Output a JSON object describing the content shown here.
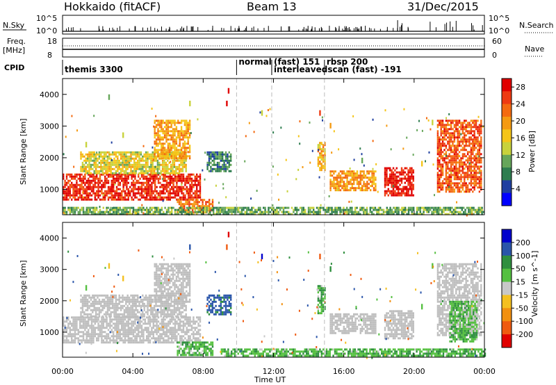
{
  "header": {
    "radar": "Hokkaido (fitACF)",
    "beam": "Beam 13",
    "date": "31/Dec/2015"
  },
  "noise_panel": {
    "left_label": "N.Sky",
    "right_label": "N.Search",
    "left_ticks": [
      "10^5",
      "10^0"
    ],
    "right_ticks": [
      "10^5",
      "10^0"
    ]
  },
  "freq_panel": {
    "left_label_top": "Freq.",
    "left_label_bottom": "[MHz]",
    "right_label": "Nave",
    "left_ticks": [
      "18",
      "8"
    ],
    "right_ticks": [
      "60",
      "0"
    ]
  },
  "cpid_panel": {
    "label": "CPID",
    "segments": [
      {
        "name": "themis 3300",
        "start_hour": 0.0,
        "end_hour": 9.9
      },
      {
        "name": "normal",
        "start_hour": 9.9,
        "end_hour": 11.9
      },
      {
        "name": "(fast) 151",
        "start_hour": 11.9,
        "end_hour": 14.9
      },
      {
        "name": "interleavedscan (fast) -191",
        "start_hour": 11.9,
        "end_hour": 14.9
      },
      {
        "name": "rbsp 200",
        "start_hour": 14.9,
        "end_hour": 24.0
      }
    ]
  },
  "colors": {
    "power_scale": [
      "#0000ff",
      "#1f3fa0",
      "#2e7d4f",
      "#66a65a",
      "#c8d23c",
      "#f5c518",
      "#f59a12",
      "#f46a10",
      "#ee3a12",
      "#e00000"
    ],
    "velocity_scale": [
      "#0000cc",
      "#2a55aa",
      "#2f8f3f",
      "#55c040",
      "#c8c8c8",
      "#f4c020",
      "#f29010",
      "#ef5a10",
      "#e00000"
    ],
    "ground_scatter": "#bebebe"
  },
  "chart_data": [
    {
      "type": "heatmap",
      "title": "Power",
      "xlabel": "Time UT",
      "ylabel": "Slant Range [km]",
      "x_ticks": [
        "00:00",
        "04:00",
        "08:00",
        "12:00",
        "16:00",
        "20:00",
        "00:00"
      ],
      "y_ticks": [
        "1000",
        "2000",
        "3000",
        "4000"
      ],
      "ylim": [
        200,
        4500
      ],
      "xlim": [
        0,
        24
      ],
      "colorbar": {
        "label": "Power [dB]",
        "ticks": [
          "4",
          "8",
          "12",
          "16",
          "20",
          "24",
          "28"
        ],
        "range": [
          0,
          30
        ]
      },
      "regions": [
        {
          "t0": 0.0,
          "t1": 7.8,
          "r0": 700,
          "r1": 1500,
          "level": 27
        },
        {
          "t0": 1.0,
          "t1": 7.0,
          "r0": 1500,
          "r1": 2200,
          "level": 15
        },
        {
          "t0": 5.2,
          "t1": 7.2,
          "r0": 2000,
          "r1": 3200,
          "level": 19
        },
        {
          "t0": 6.5,
          "t1": 8.5,
          "r0": 300,
          "r1": 700,
          "level": 22
        },
        {
          "t0": 8.2,
          "t1": 9.6,
          "r0": 1600,
          "r1": 2200,
          "level": 8
        },
        {
          "t0": 14.5,
          "t1": 14.9,
          "r0": 1600,
          "r1": 2500,
          "level": 18
        },
        {
          "t0": 15.2,
          "t1": 17.8,
          "r0": 1000,
          "r1": 1600,
          "level": 20
        },
        {
          "t0": 18.3,
          "t1": 20.0,
          "r0": 800,
          "r1": 1700,
          "level": 28
        },
        {
          "t0": 21.3,
          "t1": 23.8,
          "r0": 900,
          "r1": 3200,
          "level": 24
        },
        {
          "t0": 0.0,
          "t1": 24.0,
          "r0": 200,
          "r1": 450,
          "level": 10
        }
      ],
      "scattered_points": [
        {
          "t": 9.4,
          "r": 4200,
          "level": 29
        },
        {
          "t": 9.3,
          "r": 3800,
          "level": 27
        },
        {
          "t": 7.2,
          "r": 3800,
          "level": 12
        },
        {
          "t": 1.3,
          "r": 2500,
          "level": 14
        },
        {
          "t": 3.4,
          "r": 2800,
          "level": 12
        },
        {
          "t": 14.6,
          "r": 3500,
          "level": 26
        },
        {
          "t": 15.2,
          "r": 3100,
          "level": 20
        },
        {
          "t": 21.0,
          "r": 3200,
          "level": 12
        },
        {
          "t": 20.4,
          "r": 1900,
          "level": 16
        },
        {
          "t": 17.0,
          "r": 2000,
          "level": 10
        },
        {
          "t": 11.3,
          "r": 3500,
          "level": 12
        },
        {
          "t": 2.6,
          "r": 4000,
          "level": 10
        }
      ]
    },
    {
      "type": "heatmap",
      "title": "Velocity",
      "xlabel": "Time UT",
      "ylabel": "Slant Range [km]",
      "x_ticks": [
        "00:00",
        "04:00",
        "08:00",
        "12:00",
        "16:00",
        "20:00",
        "00:00"
      ],
      "y_ticks": [
        "1000",
        "2000",
        "3000",
        "4000"
      ],
      "ylim": [
        200,
        4500
      ],
      "xlim": [
        0,
        24
      ],
      "colorbar": {
        "label": "Velocity [m s^-1]",
        "ticks": [
          "200",
          "100",
          "50",
          "15",
          "-15",
          "-50",
          "-100",
          "-200"
        ],
        "range": [
          -250,
          250
        ]
      },
      "regions": [
        {
          "t0": 0.0,
          "t1": 7.8,
          "r0": 700,
          "r1": 1500,
          "vel": 0
        },
        {
          "t0": 1.0,
          "t1": 7.0,
          "r0": 1500,
          "r1": 2200,
          "vel": 0
        },
        {
          "t0": 5.2,
          "t1": 7.2,
          "r0": 2000,
          "r1": 3200,
          "vel": 0
        },
        {
          "t0": 6.5,
          "t1": 8.5,
          "r0": 300,
          "r1": 700,
          "vel": 40
        },
        {
          "t0": 8.2,
          "t1": 9.6,
          "r0": 1600,
          "r1": 2200,
          "vel": 120
        },
        {
          "t0": 14.5,
          "t1": 14.9,
          "r0": 1600,
          "r1": 2500,
          "vel": 40
        },
        {
          "t0": 15.2,
          "t1": 17.8,
          "r0": 1000,
          "r1": 1600,
          "vel": 0
        },
        {
          "t0": 18.3,
          "t1": 20.0,
          "r0": 800,
          "r1": 1700,
          "vel": 0
        },
        {
          "t0": 21.3,
          "t1": 23.8,
          "r0": 900,
          "r1": 3200,
          "vel": 0
        },
        {
          "t0": 22.0,
          "t1": 23.6,
          "r0": 700,
          "r1": 2000,
          "vel": 40
        },
        {
          "t0": 9.0,
          "t1": 24.0,
          "r0": 250,
          "r1": 480,
          "vel": 40
        }
      ],
      "scattered_points": [
        {
          "t": 9.4,
          "r": 4200,
          "vel": -220
        },
        {
          "t": 9.3,
          "r": 3800,
          "vel": -150
        },
        {
          "t": 7.2,
          "r": 3800,
          "vel": 150
        },
        {
          "t": 14.6,
          "r": 3500,
          "vel": -200
        },
        {
          "t": 15.2,
          "r": 3100,
          "vel": 60
        },
        {
          "t": 21.0,
          "r": 3200,
          "vel": 30
        },
        {
          "t": 20.4,
          "r": 1900,
          "vel": 40
        },
        {
          "t": 3.4,
          "r": 2800,
          "vel": -30
        },
        {
          "t": 2.6,
          "r": 3200,
          "vel": -40
        },
        {
          "t": 1.3,
          "r": 2500,
          "vel": 20
        },
        {
          "t": 11.3,
          "r": 3500,
          "vel": 210
        }
      ]
    }
  ]
}
